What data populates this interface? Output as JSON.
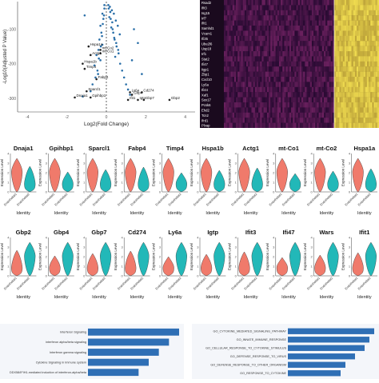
{
  "chart_data": [
    {
      "type": "scatter",
      "xlabel": "Log2(Fold Change)",
      "ylabel": "-Log10(Adjusted P Value)",
      "xticks": [
        "-4",
        "-2",
        "0",
        "2",
        "4"
      ],
      "yticks": [
        "-100",
        "-200",
        "-300"
      ],
      "xlim": [
        -4.5,
        4.5
      ],
      "ylim": [
        -340,
        -20
      ],
      "labels": [
        {
          "text": "Hspa1a",
          "x": -0.9,
          "y": -150
        },
        {
          "text": "mt-Co2",
          "x": -0.3,
          "y": -160
        },
        {
          "text": "mt-Co1",
          "x": -0.3,
          "y": -170
        },
        {
          "text": "Actg1",
          "x": -0.8,
          "y": -175
        },
        {
          "text": "Hspa1b",
          "x": -1.2,
          "y": -200
        },
        {
          "text": "Timp4",
          "x": -1.1,
          "y": -215
        },
        {
          "text": "Fabp4",
          "x": -0.5,
          "y": -245
        },
        {
          "text": "Sparcl1",
          "x": -1.0,
          "y": -280
        },
        {
          "text": "Dnaja1",
          "x": -1.6,
          "y": -298
        },
        {
          "text": "Gpihbp1",
          "x": -0.8,
          "y": -298
        },
        {
          "text": "Ly6a",
          "x": 1.2,
          "y": -283
        },
        {
          "text": "Cd274",
          "x": 1.8,
          "y": -283
        },
        {
          "text": "Gbp4",
          "x": 1.3,
          "y": -290
        },
        {
          "text": "Ifit1",
          "x": 1.1,
          "y": -305
        },
        {
          "text": "Igtp",
          "x": 1.6,
          "y": -305
        },
        {
          "text": "Gbp7",
          "x": 1.9,
          "y": -305
        },
        {
          "text": "Gbp2",
          "x": 3.2,
          "y": -305
        }
      ],
      "points": [
        [
          -0.1,
          -40
        ],
        [
          -0.2,
          -55
        ],
        [
          -0.15,
          -70
        ],
        [
          -0.3,
          -90
        ],
        [
          -0.25,
          -110
        ],
        [
          -0.35,
          -130
        ],
        [
          -0.2,
          -145
        ],
        [
          -0.4,
          -160
        ],
        [
          -0.5,
          -175
        ],
        [
          -0.3,
          -190
        ],
        [
          -0.6,
          -205
        ],
        [
          -0.45,
          -220
        ],
        [
          -0.55,
          -240
        ],
        [
          -0.7,
          -260
        ],
        [
          -0.8,
          -280
        ],
        [
          -1.2,
          -295
        ],
        [
          -0.1,
          -30
        ],
        [
          -0.12,
          -60
        ],
        [
          -0.18,
          -85
        ],
        [
          -0.22,
          -120
        ],
        [
          -0.28,
          -150
        ],
        [
          -0.38,
          -185
        ],
        [
          -0.42,
          -230
        ],
        [
          -1.1,
          -60
        ],
        [
          0.1,
          -30
        ],
        [
          0.2,
          -50
        ],
        [
          0.15,
          -65
        ],
        [
          0.3,
          -80
        ],
        [
          0.25,
          -95
        ],
        [
          0.35,
          -110
        ],
        [
          0.4,
          -125
        ],
        [
          0.5,
          -140
        ],
        [
          0.6,
          -160
        ],
        [
          0.45,
          -180
        ],
        [
          0.7,
          -200
        ],
        [
          0.8,
          -220
        ],
        [
          0.9,
          -240
        ],
        [
          1.0,
          -260
        ],
        [
          1.1,
          -275
        ],
        [
          1.2,
          -290
        ],
        [
          0.12,
          -40
        ],
        [
          0.22,
          -70
        ],
        [
          0.32,
          -100
        ],
        [
          0.42,
          -130
        ],
        [
          0.52,
          -150
        ],
        [
          0.62,
          -170
        ],
        [
          1.4,
          -100
        ],
        [
          1.6,
          -140
        ],
        [
          1.3,
          -190
        ],
        [
          1.8,
          -230
        ],
        [
          0.18,
          -35
        ],
        [
          0.28,
          -45
        ],
        [
          0.38,
          -55
        ],
        [
          0.48,
          -75
        ],
        [
          0.58,
          -90
        ],
        [
          0.68,
          -115
        ]
      ]
    },
    {
      "type": "heatmap",
      "row_labels": [
        "Rsad2",
        "Ifit3",
        "Isg15",
        "Irf7",
        "Ifit1",
        "Samhd1",
        "Vcam1",
        "Ifi35",
        "Ube2l6",
        "Usp18",
        "Irf1",
        "Stat2",
        "Ifi47",
        "Iigp1",
        "Zbp1",
        "Cxcl10",
        "Ly6a",
        "Ifi44",
        "Xaf1",
        "Sox17",
        "Pcsk6",
        "Ehd2",
        "Tcn2",
        "Ifrd1",
        "Plvap"
      ],
      "groups": [
        "Endothelial1",
        "Endothelial2"
      ]
    },
    {
      "type": "violin",
      "ylabel": "Expression Level",
      "xlabel": "Identity",
      "categories": [
        "Endothelial1",
        "Endothelial2"
      ],
      "yticks": [
        "0",
        "1",
        "2",
        "3",
        "4"
      ],
      "group_colors": [
        "#f07a6b",
        "#22b8b8"
      ],
      "genes_row1": [
        "Dnaja1",
        "Gpihbp1",
        "Sparcl1",
        "Fabp4",
        "Timp4",
        "Hspa1b",
        "Actg1",
        "mt-Co1",
        "mt-Co2",
        "Hspa1a"
      ],
      "genes_row2": [
        "Gbp2",
        "Gbp4",
        "Gbp7",
        "Cd274",
        "Ly6a",
        "Igtp",
        "Ifit3",
        "Ifi47",
        "Wars",
        "Ifit1"
      ]
    },
    {
      "type": "bar",
      "categories": [
        "Interferon Signaling",
        "interferon alpha/beta signaling",
        "Interferon gamma signaling",
        "Cytokine Signaling in Immune system",
        "DDX58/IFIH1-mediated induction of interferon-alpha/beta"
      ],
      "values": [
        9,
        8,
        7,
        6,
        5
      ],
      "color": "#2f6fb5"
    },
    {
      "type": "bar",
      "categories": [
        "GO_CYTOKINE_MEDIATED_SIGNALING_PATHWAY",
        "GO_INNATE_IMMUNE_RESPONSE",
        "GO_CELLULAR_RESPONSE_TO_CYTOKINE_STIMULUS",
        "GO_DEFENSE_RESPONSE_TO_VIRUS",
        "GO_DEFENSE_RESPONSE_TO_OTHER_ORGANISM",
        "GO_RESPONSE_TO_CYTOKINE"
      ],
      "values": [
        9,
        8.5,
        8,
        7,
        6,
        5.5
      ],
      "color": "#2f6fb5"
    }
  ]
}
